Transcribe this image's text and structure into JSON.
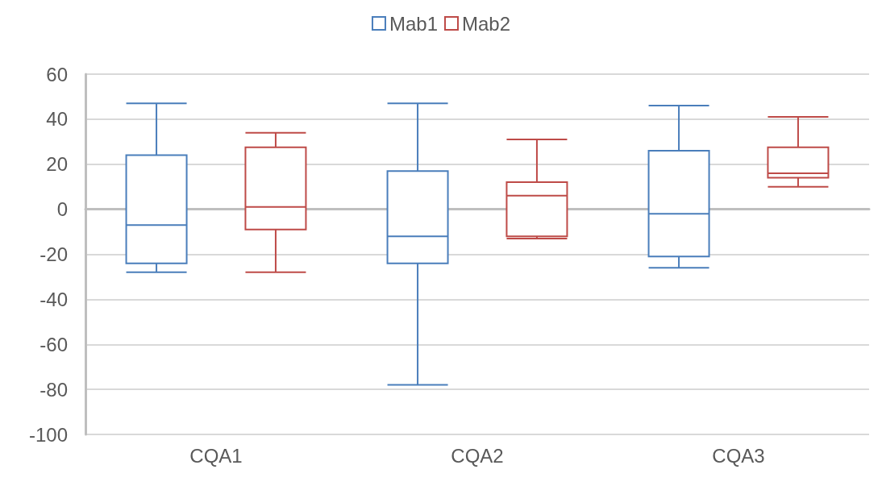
{
  "chart_data": {
    "type": "box",
    "categories": [
      "CQA1",
      "CQA2",
      "CQA3"
    ],
    "series": [
      {
        "name": "Mab1",
        "color": "#4a7ebb",
        "boxes": [
          {
            "low": -28,
            "q1": -24,
            "median": -7,
            "q3": 24,
            "high": 47
          },
          {
            "low": -78,
            "q1": -24,
            "median": -12,
            "q3": 17,
            "high": 47
          },
          {
            "low": -26,
            "q1": -21,
            "median": -2,
            "q3": 26,
            "high": 46
          }
        ]
      },
      {
        "name": "Mab2",
        "color": "#be4b48",
        "boxes": [
          {
            "low": -28,
            "q1": -9,
            "median": 1,
            "q3": 27.5,
            "high": 34
          },
          {
            "low": -13,
            "q1": -12,
            "median": 6,
            "q3": 12,
            "high": 31
          },
          {
            "low": 10,
            "q1": 14,
            "median": 16,
            "q3": 27.5,
            "high": 41
          }
        ]
      }
    ],
    "ylim": [
      -100,
      60
    ],
    "yticks": [
      -100,
      -80,
      -60,
      -40,
      -20,
      0,
      20,
      40,
      60
    ],
    "grid": "y",
    "legend": "top"
  }
}
